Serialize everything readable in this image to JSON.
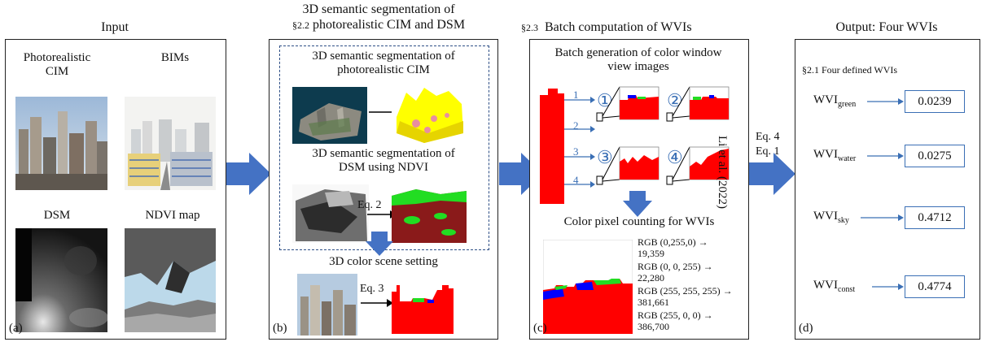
{
  "colors": {
    "arrow": "#4472c4",
    "red": "#ff0000",
    "green": "#22dd22",
    "blue": "#0000ff",
    "sky": "#ffffff",
    "yellow": "#ffff00",
    "pink": "#e88ea0",
    "maroon": "#8a1a1a"
  },
  "panel_a": {
    "title": "Input",
    "cim_label": "Photorealistic CIM",
    "bim_label": "BIMs",
    "dsm_label": "DSM",
    "ndvi_label": "NDVI map",
    "tag": "(a)"
  },
  "panel_b": {
    "section": "§2.2",
    "title_line1": "3D semantic segmentation of",
    "title_line2": "photorealistic CIM and DSM",
    "seg_cim_line1": "3D semantic segmentation of",
    "seg_cim_line2": "photorealistic CIM",
    "seg_dsm_line1": "3D semantic segmentation of",
    "seg_dsm_line2": "DSM using NDVI",
    "eq2": "Eq. 2",
    "scene_label": "3D color scene setting",
    "eq3": "Eq. 3",
    "tag": "(b)"
  },
  "panel_c": {
    "section": "§2.3",
    "title": "Batch computation of WVIs",
    "batch_line1": "Batch generation of color window",
    "batch_line2": "view images",
    "side_ref": "Li et al. (2022)",
    "view_numbers": [
      "①",
      "②",
      "③",
      "④"
    ],
    "ray_labels": [
      "1",
      "2",
      "3",
      "4"
    ],
    "count_label": "Color pixel counting for WVIs",
    "counts": [
      {
        "rgb": "RGB (0,255,0) →",
        "value": "19,359"
      },
      {
        "rgb": "RGB (0, 0, 255) →",
        "value": "22,280"
      },
      {
        "rgb": "RGB (255, 255, 255) →",
        "value": "381,661"
      },
      {
        "rgb": "RGB (255, 0, 0) →",
        "value": "386,700"
      }
    ],
    "tag": "(c)"
  },
  "eqs": {
    "eq4": "Eq. 4",
    "eq1": "Eq. 1"
  },
  "panel_d": {
    "title": "Output: Four WVIs",
    "section": "§2.1 Four defined WVIs",
    "wvis": [
      {
        "base": "WVI",
        "sub": "green",
        "value": "0.0239"
      },
      {
        "base": "WVI",
        "sub": "water",
        "value": "0.0275"
      },
      {
        "base": "WVI",
        "sub": "sky",
        "value": "0.4712"
      },
      {
        "base": "WVI",
        "sub": "const",
        "value": "0.4774"
      }
    ],
    "tag": "(d)"
  }
}
